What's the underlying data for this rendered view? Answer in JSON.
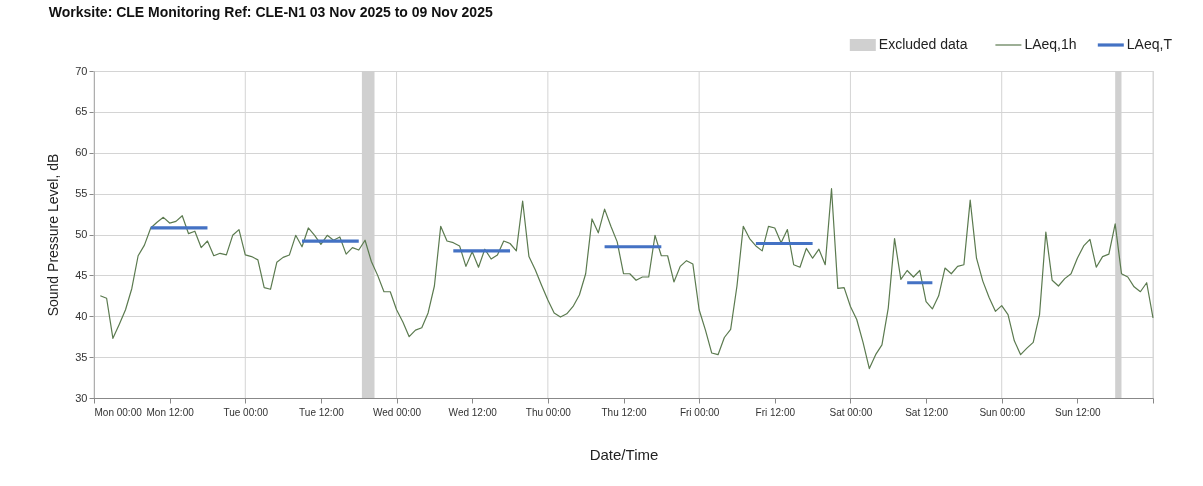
{
  "chart_data": {
    "type": "line",
    "title": "Worksite: CLE    Monitoring Ref: CLE-N1     03 Nov 2025 to 09 Nov 2025",
    "xlabel": "Date/Time",
    "ylabel": "Sound Pressure Level, dB",
    "xlim": [
      "2025-11-03T00:00",
      "2025-11-10T00:00"
    ],
    "ylim": [
      30,
      70
    ],
    "xticks": [
      {
        "value": "2025-11-03T00:00",
        "label": "Mon 00:00"
      },
      {
        "value": "2025-11-03T12:00",
        "label": "Mon 12:00"
      },
      {
        "value": "2025-11-04T00:00",
        "label": "Tue 00:00"
      },
      {
        "value": "2025-11-04T12:00",
        "label": "Tue 12:00"
      },
      {
        "value": "2025-11-05T00:00",
        "label": "Wed 00:00"
      },
      {
        "value": "2025-11-05T12:00",
        "label": "Wed 12:00"
      },
      {
        "value": "2025-11-06T00:00",
        "label": "Thu 00:00"
      },
      {
        "value": "2025-11-06T12:00",
        "label": "Thu 12:00"
      },
      {
        "value": "2025-11-07T00:00",
        "label": "Fri 00:00"
      },
      {
        "value": "2025-11-07T12:00",
        "label": "Fri 12:00"
      },
      {
        "value": "2025-11-08T00:00",
        "label": "Sat 00:00"
      },
      {
        "value": "2025-11-08T12:00",
        "label": "Sat 12:00"
      },
      {
        "value": "2025-11-09T00:00",
        "label": "Sun 00:00"
      },
      {
        "value": "2025-11-09T12:00",
        "label": "Sun 12:00"
      },
      {
        "value": "2025-11-10T00:00",
        "label": null
      }
    ],
    "yticks": [
      30,
      35,
      40,
      45,
      50,
      55,
      60,
      65,
      70
    ],
    "grid": true,
    "legend": "top right",
    "marker": "none",
    "line_style": "solid",
    "bands": [
      {
        "axis": "x",
        "from": "2025-11-04T18:30",
        "to": "2025-11-04T20:30",
        "label": "Excluded data",
        "color": "#d0d0d0"
      },
      {
        "axis": "x",
        "from": "2025-11-09T18:00",
        "to": "2025-11-09T19:00",
        "color": "#d0d0d0"
      }
    ],
    "series": [
      {
        "name": "LAeq,1h",
        "color": "#5b7a4f",
        "x": [
          "2025-11-03T01:00",
          "2025-11-03T02:00",
          "2025-11-03T03:00",
          "2025-11-03T04:00",
          "2025-11-03T05:00",
          "2025-11-03T06:00",
          "2025-11-03T07:00",
          "2025-11-03T08:00",
          "2025-11-03T09:00",
          "2025-11-03T10:00",
          "2025-11-03T11:00",
          "2025-11-03T12:00",
          "2025-11-03T13:00",
          "2025-11-03T14:00",
          "2025-11-03T15:00",
          "2025-11-03T16:00",
          "2025-11-03T17:00",
          "2025-11-03T18:00",
          "2025-11-03T19:00",
          "2025-11-03T20:00",
          "2025-11-03T21:00",
          "2025-11-03T22:00",
          "2025-11-03T23:00",
          "2025-11-04T00:00",
          "2025-11-04T01:00",
          "2025-11-04T02:00",
          "2025-11-04T03:00",
          "2025-11-04T04:00",
          "2025-11-04T05:00",
          "2025-11-04T06:00",
          "2025-11-04T07:00",
          "2025-11-04T08:00",
          "2025-11-04T09:00",
          "2025-11-04T10:00",
          "2025-11-04T11:00",
          "2025-11-04T12:00",
          "2025-11-04T13:00",
          "2025-11-04T14:00",
          "2025-11-04T15:00",
          "2025-11-04T16:00",
          "2025-11-04T17:00",
          "2025-11-04T18:00",
          "2025-11-04T19:00",
          "2025-11-04T20:00",
          "2025-11-04T21:00",
          "2025-11-04T22:00",
          "2025-11-04T23:00",
          "2025-11-05T00:00",
          "2025-11-05T01:00",
          "2025-11-05T02:00",
          "2025-11-05T03:00",
          "2025-11-05T04:00",
          "2025-11-05T05:00",
          "2025-11-05T06:00",
          "2025-11-05T07:00",
          "2025-11-05T08:00",
          "2025-11-05T09:00",
          "2025-11-05T10:00",
          "2025-11-05T11:00",
          "2025-11-05T12:00",
          "2025-11-05T13:00",
          "2025-11-05T14:00",
          "2025-11-05T15:00",
          "2025-11-05T16:00",
          "2025-11-05T17:00",
          "2025-11-05T18:00",
          "2025-11-05T19:00",
          "2025-11-05T20:00",
          "2025-11-05T21:00",
          "2025-11-05T22:00",
          "2025-11-05T23:00",
          "2025-11-06T00:00",
          "2025-11-06T01:00",
          "2025-11-06T02:00",
          "2025-11-06T03:00",
          "2025-11-06T04:00",
          "2025-11-06T05:00",
          "2025-11-06T06:00",
          "2025-11-06T07:00",
          "2025-11-06T08:00",
          "2025-11-06T09:00",
          "2025-11-06T10:00",
          "2025-11-06T11:00",
          "2025-11-06T12:00",
          "2025-11-06T13:00",
          "2025-11-06T14:00",
          "2025-11-06T15:00",
          "2025-11-06T16:00",
          "2025-11-06T17:00",
          "2025-11-06T18:00",
          "2025-11-06T19:00",
          "2025-11-06T20:00",
          "2025-11-06T21:00",
          "2025-11-06T22:00",
          "2025-11-06T23:00",
          "2025-11-07T00:00",
          "2025-11-07T01:00",
          "2025-11-07T02:00",
          "2025-11-07T03:00",
          "2025-11-07T04:00",
          "2025-11-07T05:00",
          "2025-11-07T06:00",
          "2025-11-07T07:00",
          "2025-11-07T08:00",
          "2025-11-07T09:00",
          "2025-11-07T10:00",
          "2025-11-07T11:00",
          "2025-11-07T12:00",
          "2025-11-07T13:00",
          "2025-11-07T14:00",
          "2025-11-07T15:00",
          "2025-11-07T16:00",
          "2025-11-07T17:00",
          "2025-11-07T18:00",
          "2025-11-07T19:00",
          "2025-11-07T20:00",
          "2025-11-07T21:00",
          "2025-11-07T22:00",
          "2025-11-07T23:00",
          "2025-11-08T00:00",
          "2025-11-08T01:00",
          "2025-11-08T02:00",
          "2025-11-08T03:00",
          "2025-11-08T04:00",
          "2025-11-08T05:00",
          "2025-11-08T06:00",
          "2025-11-08T07:00",
          "2025-11-08T08:00",
          "2025-11-08T09:00",
          "2025-11-08T10:00",
          "2025-11-08T11:00",
          "2025-11-08T12:00",
          "2025-11-08T13:00",
          "2025-11-08T14:00",
          "2025-11-08T15:00",
          "2025-11-08T16:00",
          "2025-11-08T17:00",
          "2025-11-08T18:00",
          "2025-11-08T19:00",
          "2025-11-08T20:00",
          "2025-11-08T21:00",
          "2025-11-08T22:00",
          "2025-11-08T23:00",
          "2025-11-09T00:00",
          "2025-11-09T01:00",
          "2025-11-09T02:00",
          "2025-11-09T03:00",
          "2025-11-09T04:00",
          "2025-11-09T05:00",
          "2025-11-09T06:00",
          "2025-11-09T07:00",
          "2025-11-09T08:00",
          "2025-11-09T09:00",
          "2025-11-09T10:00",
          "2025-11-09T11:00",
          "2025-11-09T12:00",
          "2025-11-09T13:00",
          "2025-11-09T14:00",
          "2025-11-09T15:00",
          "2025-11-09T16:00",
          "2025-11-09T17:00",
          "2025-11-09T18:00",
          "2025-11-09T19:00",
          "2025-11-09T20:00",
          "2025-11-09T21:00",
          "2025-11-09T22:00",
          "2025-11-09T23:00",
          "2025-11-10T00:00"
        ],
        "values": [
          42.5,
          42.2,
          37.3,
          39.0,
          40.8,
          43.4,
          47.4,
          48.7,
          50.8,
          51.5,
          52.1,
          51.4,
          51.6,
          52.3,
          50.1,
          50.4,
          48.4,
          49.2,
          47.4,
          47.7,
          47.5,
          49.9,
          50.6,
          47.5,
          47.3,
          46.9,
          43.5,
          43.3,
          46.6,
          47.2,
          47.5,
          49.9,
          48.5,
          50.8,
          49.9,
          48.8,
          49.9,
          49.3,
          49.7,
          47.6,
          48.4,
          48.1,
          49.3,
          46.7,
          45.0,
          43.0,
          43.0,
          40.8,
          39.3,
          37.5,
          38.3,
          38.6,
          40.4,
          43.7,
          51.0,
          49.2,
          49.0,
          48.6,
          46.1,
          47.9,
          46.0,
          48.2,
          47.0,
          47.5,
          49.2,
          48.9,
          48.0,
          54.1,
          47.3,
          45.7,
          43.8,
          42.0,
          40.4,
          39.9,
          40.3,
          41.2,
          42.6,
          45.2,
          51.9,
          50.2,
          53.1,
          51.0,
          49.1,
          45.2,
          45.2,
          44.4,
          44.8,
          44.8,
          49.9,
          47.4,
          47.4,
          44.2,
          46.1,
          46.8,
          46.4,
          40.8,
          38.3,
          35.5,
          35.3,
          37.4,
          38.4,
          43.7,
          51.0,
          49.5,
          48.6,
          48.0,
          51.0,
          50.8,
          49.0,
          50.6,
          46.3,
          46.0,
          48.3,
          47.1,
          48.2,
          46.3,
          55.6,
          43.4,
          43.5,
          41.2,
          39.6,
          36.8,
          33.6,
          35.3,
          36.5,
          41.0,
          49.5,
          44.5,
          45.6,
          44.8,
          45.6,
          41.8,
          40.9,
          42.5,
          45.9,
          45.2,
          46.1,
          46.3,
          54.2,
          47.1,
          44.3,
          42.3,
          40.6,
          41.3,
          40.2,
          37.0,
          35.3,
          36.1,
          36.8,
          40.2,
          50.3,
          44.4,
          43.7,
          44.6,
          45.2,
          47.1,
          48.6,
          49.4,
          46.0,
          47.3,
          47.6,
          51.3,
          45.2,
          44.8,
          43.6,
          43.0,
          44.1,
          39.8
        ]
      },
      {
        "name": "LAeq,T",
        "color": "#4472c4",
        "x": [
          "2025-11-03T09:00",
          "2025-11-03T18:00",
          "2025-11-04T01:00",
          "2025-11-04T09:00",
          "2025-11-04T18:00",
          "2025-11-05T01:00",
          "2025-11-05T09:00",
          "2025-11-05T18:00",
          "2025-11-06T01:00",
          "2025-11-06T09:00",
          "2025-11-06T18:00",
          "2025-11-07T01:00",
          "2025-11-07T09:00",
          "2025-11-07T18:00",
          "2025-11-08T01:00",
          "2025-11-08T09:00",
          "2025-11-08T13:00"
        ],
        "values": [
          50.8,
          50.8,
          null,
          49.2,
          49.2,
          null,
          48.0,
          48.0,
          null,
          48.5,
          48.5,
          null,
          48.9,
          48.9,
          null,
          44.1,
          44.1
        ]
      }
    ]
  }
}
